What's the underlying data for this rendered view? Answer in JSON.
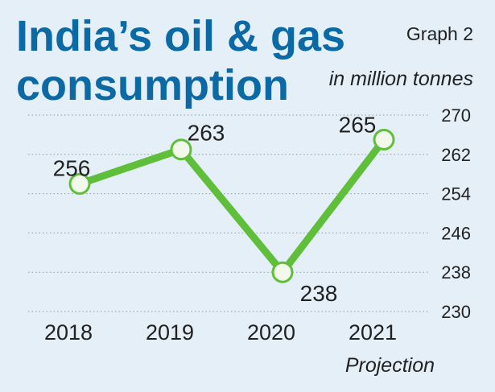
{
  "title": {
    "line1": "India’s oil & gas",
    "line2": "consumption"
  },
  "graph_label": "Graph 2",
  "unit_label": "in million tonnes",
  "projection_label": "Projection",
  "colors": {
    "background": "#e4eff8",
    "title": "#0b6aa6",
    "line": "#5fbf3a",
    "marker_fill": "#f2f8ea",
    "text": "#222222",
    "grid": "#8a9aa6"
  },
  "chart_data": {
    "type": "line",
    "title": "India’s oil & gas consumption",
    "ylabel": "in million tonnes",
    "categories": [
      "2018",
      "2019",
      "2020",
      "2021"
    ],
    "values": [
      256,
      263,
      238,
      265
    ],
    "data_labels": [
      "256",
      "263",
      "238",
      "265"
    ],
    "projected_categories": [
      "2021"
    ],
    "yticks": [
      270,
      262,
      254,
      246,
      238,
      230
    ],
    "ylim": [
      230,
      270
    ],
    "grid": true,
    "axis_side": "right"
  }
}
